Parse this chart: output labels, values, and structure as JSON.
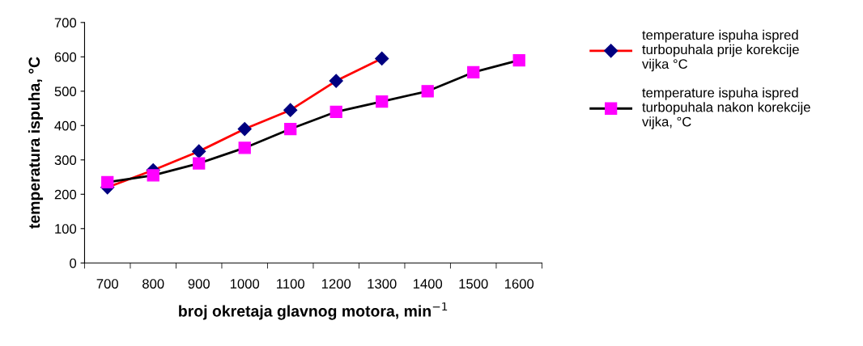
{
  "chart_data": {
    "type": "line",
    "xlabel": "broj okretaja glavnog motora, min$^{−1}$",
    "ylabel": "temperatura ispuha, °C",
    "categories": [
      "700",
      "800",
      "900",
      "1000",
      "1100",
      "1200",
      "1300",
      "1400",
      "1500",
      "1600"
    ],
    "ylim": [
      0,
      700
    ],
    "yticks": [
      0,
      100,
      200,
      300,
      400,
      500,
      600,
      700
    ],
    "grid": false,
    "legend": "right",
    "series": [
      {
        "name": "temperature ispuha ispred turbopuhala prije korekcije vijka °C",
        "color": "#ff0000",
        "colors": [
          "#000080",
          "#000080",
          "#000080",
          "#000080",
          "#000080",
          "#000080",
          "#000080",
          null,
          null,
          null
        ],
        "marker": "diamond",
        "values": [
          220,
          270,
          325,
          390,
          445,
          530,
          595,
          null,
          null,
          null
        ]
      },
      {
        "name": "temperature ispuha ispred turbopuhala nakon korekcije vijka, °C",
        "color": "#000000",
        "colors": [
          "#ff00ff",
          "#ff00ff",
          "#ff00ff",
          "#ff00ff",
          "#ff00ff",
          "#ff00ff",
          "#ff00ff",
          "#ff00ff",
          "#ff00ff",
          "#ff00ff"
        ],
        "marker": "square",
        "values": [
          235,
          255,
          290,
          335,
          390,
          440,
          470,
          500,
          555,
          590
        ]
      }
    ]
  }
}
